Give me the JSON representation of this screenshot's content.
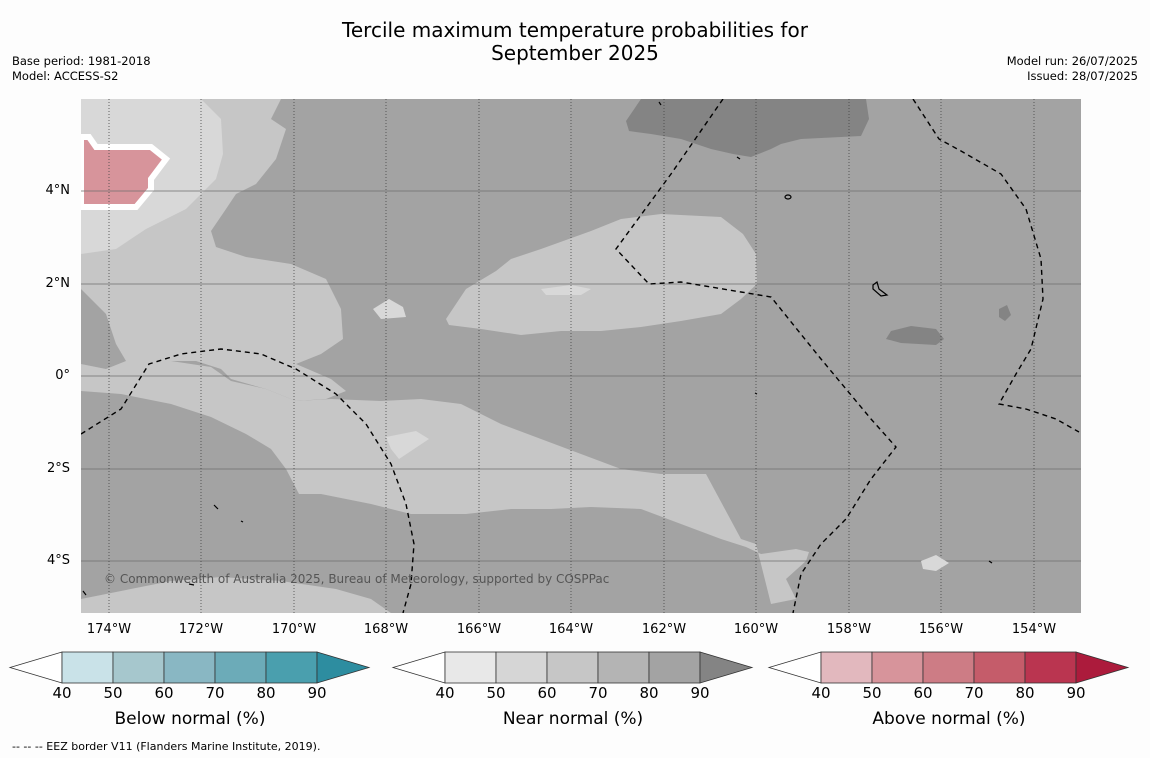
{
  "title_line1": "Tercile maximum temperature probabilities for",
  "title_line2": "September 2025",
  "meta_left": {
    "base_period": "Base period: 1981-2018",
    "model": "Model: ACCESS-S2"
  },
  "meta_right": {
    "model_run": "Model run: 26/07/2025",
    "issued": "Issued: 28/07/2025"
  },
  "map": {
    "lat_labels": [
      "4°N",
      "2°N",
      "0°",
      "2°S",
      "4°S"
    ],
    "lon_labels": [
      "174°W",
      "172°W",
      "170°W",
      "168°W",
      "166°W",
      "164°W",
      "162°W",
      "160°W",
      "158°W",
      "156°W",
      "154°W"
    ],
    "copyright": "© Commonwealth of Australia 2025, Bureau of Meteorology, supported by COSPPac",
    "colors": {
      "sea_base": "#a3a3a3",
      "near_70": "#c6c6c6",
      "near_60": "#d8d8d8",
      "near_90": "#848484",
      "above_60": "#d7949b"
    }
  },
  "colorbars": [
    {
      "label": "Below normal (%)",
      "ticks": [
        "40",
        "50",
        "60",
        "70",
        "80",
        "90"
      ],
      "colors": [
        "#ffffff",
        "#c9e2e8",
        "#a6c7cd",
        "#89b7c3",
        "#6cabb8",
        "#4a9fae",
        "#2d8da0"
      ]
    },
    {
      "label": "Near normal (%)",
      "ticks": [
        "40",
        "50",
        "60",
        "70",
        "80",
        "90"
      ],
      "colors": [
        "#ffffff",
        "#e8e8e8",
        "#d6d6d6",
        "#c6c6c6",
        "#b4b4b4",
        "#a3a3a3",
        "#848484"
      ]
    },
    {
      "label": "Above normal (%)",
      "ticks": [
        "40",
        "50",
        "60",
        "70",
        "80",
        "90"
      ],
      "colors": [
        "#ffffff",
        "#e2b8be",
        "#d7949b",
        "#cd7c85",
        "#c55c6a",
        "#ba3550",
        "#ac1b3c"
      ]
    }
  ],
  "footnote": "--  --  -- EEZ border V11 (Flanders Marine Institute, 2019)."
}
